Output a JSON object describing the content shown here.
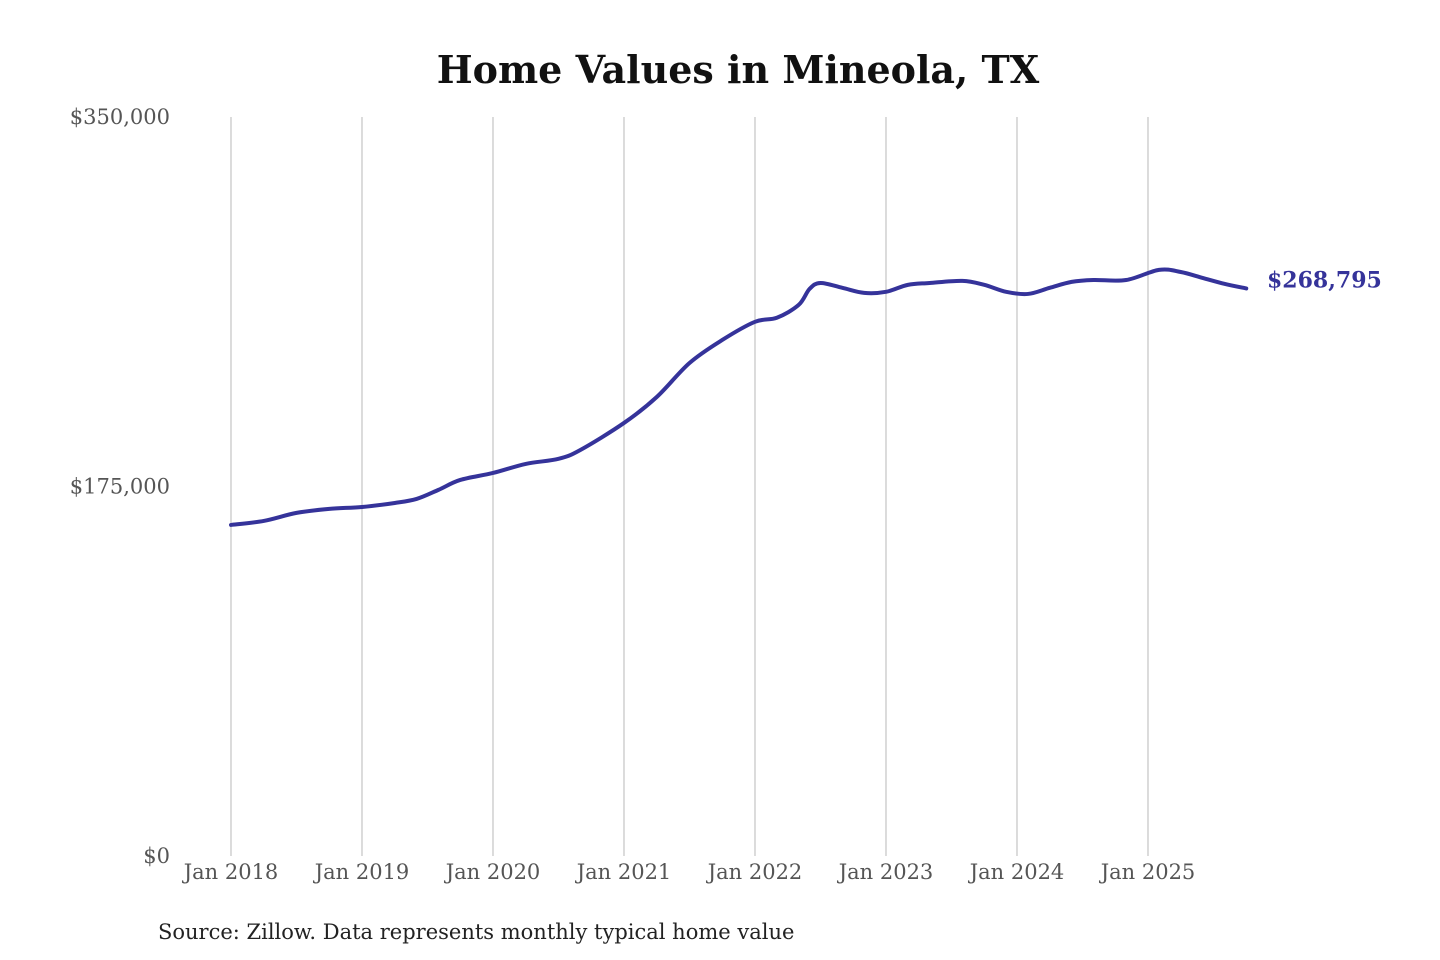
{
  "chart_data": {
    "type": "line",
    "title": "Home Values in Mineola, TX",
    "xlabel": "",
    "ylabel": "",
    "ylim": [
      0,
      350000
    ],
    "y_ticks": [
      "$0",
      "$175,000",
      "$350,000"
    ],
    "y_tick_values": [
      0,
      175000,
      350000
    ],
    "x_ticks": [
      "Jan 2018",
      "Jan 2019",
      "Jan 2020",
      "Jan 2021",
      "Jan 2022",
      "Jan 2023",
      "Jan 2024",
      "Jan 2025"
    ],
    "x_tick_dates": [
      "2018-01",
      "2019-01",
      "2020-01",
      "2021-01",
      "2022-01",
      "2023-01",
      "2024-01",
      "2025-01"
    ],
    "grid": "vertical",
    "legend": "none",
    "line_color": "#35339a",
    "end_label": "$268,795",
    "series": [
      {
        "x": [
          "2018-01",
          "2018-04",
          "2018-07",
          "2018-10",
          "2019-01",
          "2019-04",
          "2019-06",
          "2019-08",
          "2019-10",
          "2020-01",
          "2020-04",
          "2020-07",
          "2020-09",
          "2021-01",
          "2021-04",
          "2021-07",
          "2021-10",
          "2022-01",
          "2022-03",
          "2022-05",
          "2022-06",
          "2022-07",
          "2022-09",
          "2022-11",
          "2023-01",
          "2023-03",
          "2023-05",
          "2023-08",
          "2023-10",
          "2023-12",
          "2024-02",
          "2024-04",
          "2024-06",
          "2024-08",
          "2024-11",
          "2025-02",
          "2025-04",
          "2025-06",
          "2025-08",
          "2025-10"
        ],
        "values": [
          156800,
          158700,
          162500,
          164400,
          165300,
          167200,
          169100,
          173400,
          178100,
          181400,
          185700,
          188100,
          192300,
          205100,
          217400,
          233500,
          244400,
          253000,
          254900,
          261000,
          268600,
          271400,
          269100,
          266700,
          267200,
          270500,
          271400,
          272400,
          270500,
          267200,
          266200,
          269100,
          271900,
          272800,
          272800,
          277600,
          276600,
          273800,
          271000,
          268795
        ]
      }
    ],
    "source": "Source: Zillow. Data represents monthly typical home value"
  }
}
